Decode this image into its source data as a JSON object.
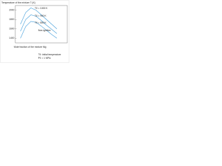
{
  "chart_data": {
    "type": "line",
    "ylabel": "Temperature of the mixture T (K)",
    "xlabel": "Mole fraction of the mixture Mg",
    "x": [
      0.1,
      0.2,
      0.3,
      0.4,
      0.5,
      0.6,
      0.7,
      0.8
    ],
    "xlim": [
      0,
      1
    ],
    "ylim": [
      1300,
      2100
    ],
    "yticks": [
      1400,
      1600,
      1800,
      2000
    ],
    "series": [
      {
        "name": "T0 = 1000 K",
        "color": "#3b9ad9",
        "values": [
          1700,
          1950,
          2050,
          2000,
          1900,
          1800,
          1700,
          1600
        ]
      },
      {
        "name": "T0 = 900 K",
        "color": "#3b9ad9",
        "values": [
          1550,
          1800,
          1900,
          1870,
          1780,
          1680,
          1590,
          1500
        ]
      },
      {
        "name": "T0 = 800 K",
        "color": "#3b9ad9",
        "values": [
          1400,
          1650,
          1760,
          1740,
          1660,
          1570,
          1480,
          1400
        ]
      }
    ],
    "annotations": [
      "Non-ignition",
      "T0: initial temperature",
      "P0 = 1 MPa"
    ]
  }
}
